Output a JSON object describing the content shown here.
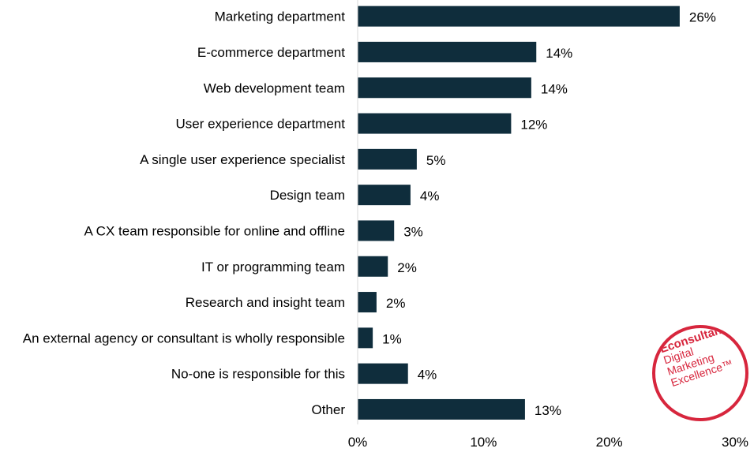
{
  "chart_data": {
    "type": "bar",
    "orientation": "horizontal",
    "categories": [
      "Marketing department",
      "E-commerce department",
      "Web development team",
      "User experience department",
      "A single user experience specialist",
      "Design team",
      "A CX team responsible for online and offline",
      "IT or programming team",
      "Research and insight team",
      "An external agency or consultant is wholly responsible",
      "No-one is responsible for this",
      "Other"
    ],
    "values": [
      25.6,
      14.2,
      13.8,
      12.2,
      4.7,
      4.2,
      2.9,
      2.4,
      1.5,
      1.2,
      4.0,
      13.3
    ],
    "value_labels": [
      "26%",
      "14%",
      "14%",
      "12%",
      "5%",
      "4%",
      "3%",
      "2%",
      "2%",
      "1%",
      "4%",
      "13%"
    ],
    "xlim": [
      0,
      30
    ],
    "xticks": [
      0,
      10,
      20,
      30
    ],
    "xtick_labels": [
      "0%",
      "10%",
      "20%",
      "30%"
    ],
    "bar_color": "#0f2d3c",
    "grid": false,
    "legend": "none"
  },
  "logo": {
    "brand": "Econsultancy",
    "tagline": [
      "Digital",
      "Marketing",
      "Excellence™"
    ],
    "color": "#d7263d"
  }
}
